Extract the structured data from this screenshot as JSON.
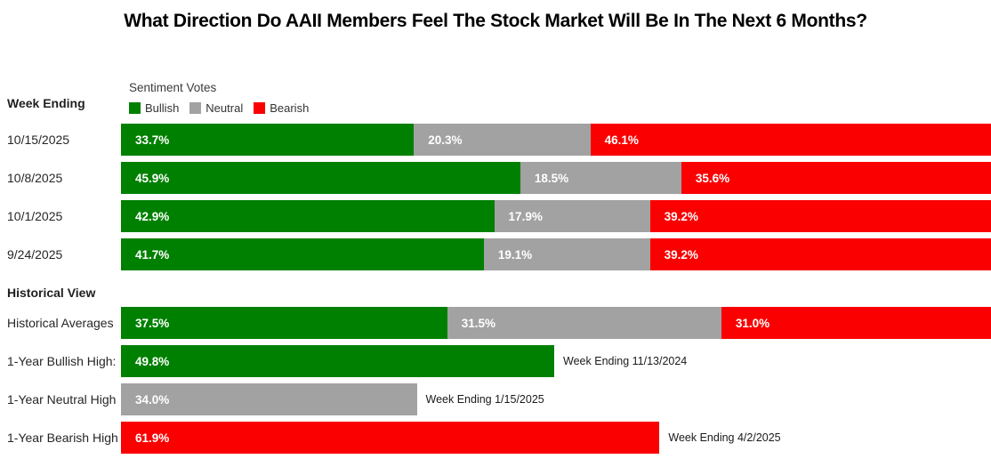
{
  "title": "What Direction Do AAII Members Feel The Stock Market Will Be In The Next 6 Months?",
  "legend": {
    "title": "Sentiment Votes",
    "items": [
      {
        "series": "bullish",
        "label": "Bullish"
      },
      {
        "series": "neutral",
        "label": "Neutral"
      },
      {
        "series": "bearish",
        "label": "Bearish"
      }
    ]
  },
  "left_headers": {
    "weekly": "Week Ending",
    "historical": "Historical View"
  },
  "colors": {
    "bullish": "#008000",
    "neutral": "#a2a2a2",
    "bearish": "#fa0000"
  },
  "chart_data": {
    "type": "bar",
    "variant": "horizontal-stacked-100pct",
    "series": [
      "Bullish",
      "Neutral",
      "Bearish"
    ],
    "x_range": [
      0,
      100
    ],
    "grid": false,
    "weekly_rows": [
      {
        "label": "10/15/2025",
        "segments": [
          {
            "series": "bullish",
            "value": 33.7,
            "display": "33.7%"
          },
          {
            "series": "neutral",
            "value": 20.3,
            "display": "20.3%"
          },
          {
            "series": "bearish",
            "value": 46.1,
            "display": "46.1%"
          }
        ]
      },
      {
        "label": "10/8/2025",
        "segments": [
          {
            "series": "bullish",
            "value": 45.9,
            "display": "45.9%"
          },
          {
            "series": "neutral",
            "value": 18.5,
            "display": "18.5%"
          },
          {
            "series": "bearish",
            "value": 35.6,
            "display": "35.6%"
          }
        ]
      },
      {
        "label": "10/1/2025",
        "segments": [
          {
            "series": "bullish",
            "value": 42.9,
            "display": "42.9%"
          },
          {
            "series": "neutral",
            "value": 17.9,
            "display": "17.9%"
          },
          {
            "series": "bearish",
            "value": 39.2,
            "display": "39.2%"
          }
        ]
      },
      {
        "label": "9/24/2025",
        "segments": [
          {
            "series": "bullish",
            "value": 41.7,
            "display": "41.7%"
          },
          {
            "series": "neutral",
            "value": 19.1,
            "display": "19.1%"
          },
          {
            "series": "bearish",
            "value": 39.2,
            "display": "39.2%"
          }
        ]
      }
    ],
    "historical_rows": [
      {
        "label": "Historical Averages",
        "segments": [
          {
            "series": "bullish",
            "value": 37.5,
            "display": "37.5%"
          },
          {
            "series": "neutral",
            "value": 31.5,
            "display": "31.5%"
          },
          {
            "series": "bearish",
            "value": 31.0,
            "display": "31.0%"
          }
        ]
      },
      {
        "label": "1-Year Bullish High:",
        "segments": [
          {
            "series": "bullish",
            "value": 49.8,
            "display": "49.8%"
          }
        ],
        "annotation": "Week Ending 11/13/2024"
      },
      {
        "label": "1-Year Neutral High",
        "segments": [
          {
            "series": "neutral",
            "value": 34.0,
            "display": "34.0%"
          }
        ],
        "annotation": "Week Ending 1/15/2025"
      },
      {
        "label": "1-Year Bearish High",
        "segments": [
          {
            "series": "bearish",
            "value": 61.9,
            "display": "61.9%"
          }
        ],
        "annotation": "Week Ending 4/2/2025"
      }
    ]
  }
}
